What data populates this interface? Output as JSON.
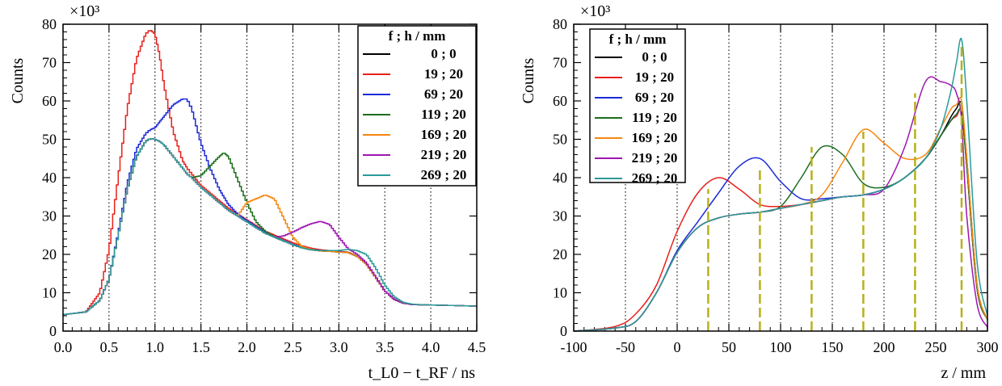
{
  "chart_data": [
    {
      "type": "line",
      "style": "histogram",
      "xlabel": "t_L0 − t_RF / ns",
      "ylabel": "Counts",
      "y_multiplier": "×10³",
      "xlim": [
        0,
        4.5
      ],
      "ylim": [
        0,
        80
      ],
      "xticks": [
        "0.0",
        "0.5",
        "1.0",
        "1.5",
        "2.0",
        "2.5",
        "3.0",
        "3.5",
        "4.0",
        "4.5"
      ],
      "yticks": [
        "0",
        "10",
        "20",
        "30",
        "40",
        "50",
        "60",
        "70",
        "80"
      ],
      "grid_x": [
        0.5,
        1.0,
        1.5,
        2.0,
        2.5,
        3.0,
        3.5,
        4.0
      ],
      "legend_title": "f ; h / mm",
      "legend_position": "top-right",
      "series": [
        {
          "name": "0 ; 0",
          "color": "#000000"
        },
        {
          "name": "19 ; 20",
          "color": "#e8201b"
        },
        {
          "name": "69 ; 20",
          "color": "#1c2ad8"
        },
        {
          "name": "119 ; 20",
          "color": "#1c6e1c"
        },
        {
          "name": "169 ; 20",
          "color": "#f7860f"
        },
        {
          "name": "219 ; 20",
          "color": "#9e16b0"
        },
        {
          "name": "269 ; 20",
          "color": "#2a9a9a"
        }
      ],
      "x": [
        0.0,
        0.25,
        0.4,
        0.5,
        0.6,
        0.7,
        0.8,
        0.9,
        0.95,
        1.0,
        1.05,
        1.1,
        1.2,
        1.3,
        1.35,
        1.4,
        1.5,
        1.6,
        1.7,
        1.75,
        1.8,
        1.9,
        2.0,
        2.1,
        2.2,
        2.3,
        2.4,
        2.5,
        2.6,
        2.7,
        2.8,
        2.9,
        3.0,
        3.1,
        3.2,
        3.3,
        3.4,
        3.5,
        3.6,
        3.7,
        3.8,
        4.0,
        4.2,
        4.5
      ],
      "values": [
        [
          4.3,
          5.0,
          8.0,
          13.5,
          25.0,
          37.0,
          45.5,
          49.5,
          50.2,
          50.0,
          49.5,
          48.5,
          45.5,
          42.5,
          41.0,
          40.0,
          37.5,
          35.5,
          33.5,
          32.5,
          31.5,
          30.0,
          28.5,
          27.0,
          25.5,
          24.5,
          23.5,
          22.5,
          21.7,
          21.2,
          20.9,
          20.8,
          20.6,
          20.5,
          19.5,
          17.5,
          14.0,
          10.5,
          8.3,
          7.3,
          6.9,
          6.8,
          6.7,
          6.5
        ],
        [
          4.3,
          5.0,
          10.0,
          21.0,
          40.0,
          58.0,
          71.0,
          77.5,
          78.5,
          77.5,
          72.0,
          64.0,
          52.0,
          44.5,
          42.5,
          41.0,
          38.0,
          36.0,
          34.0,
          33.0,
          32.0,
          30.5,
          29.0,
          27.5,
          26.0,
          25.0,
          24.0,
          23.0,
          22.2,
          21.6,
          21.2,
          21.0,
          20.8,
          20.6,
          19.5,
          17.5,
          14.0,
          10.5,
          8.3,
          7.3,
          6.9,
          6.8,
          6.7,
          6.5
        ],
        [
          4.3,
          5.0,
          8.0,
          13.5,
          25.5,
          38.5,
          47.5,
          51.5,
          52.5,
          53.0,
          54.5,
          56.0,
          59.0,
          60.5,
          60.5,
          58.0,
          49.0,
          42.5,
          37.0,
          35.0,
          33.0,
          30.5,
          28.8,
          27.2,
          25.8,
          24.6,
          23.6,
          22.6,
          21.8,
          21.3,
          21.0,
          20.9,
          20.7,
          20.5,
          19.5,
          17.5,
          14.0,
          10.5,
          8.3,
          7.3,
          6.9,
          6.8,
          6.7,
          6.5
        ],
        [
          4.3,
          5.0,
          8.0,
          13.5,
          25.0,
          37.0,
          45.5,
          49.5,
          50.2,
          50.0,
          49.5,
          48.5,
          45.5,
          42.5,
          41.0,
          40.0,
          40.5,
          43.0,
          45.5,
          46.5,
          45.5,
          39.5,
          33.5,
          28.5,
          26.0,
          24.5,
          23.5,
          22.5,
          21.7,
          21.2,
          20.9,
          20.8,
          20.6,
          20.5,
          19.5,
          17.5,
          14.0,
          10.5,
          8.3,
          7.3,
          6.9,
          6.8,
          6.7,
          6.5
        ],
        [
          4.3,
          5.0,
          8.0,
          13.5,
          25.0,
          37.0,
          45.5,
          49.5,
          50.2,
          50.0,
          49.5,
          48.5,
          45.5,
          42.5,
          41.0,
          40.0,
          37.5,
          35.5,
          33.5,
          32.5,
          31.5,
          30.0,
          33.5,
          34.5,
          35.5,
          34.5,
          29.5,
          24.5,
          22.0,
          21.3,
          20.9,
          20.8,
          20.6,
          20.5,
          19.5,
          17.5,
          14.0,
          10.5,
          8.3,
          7.3,
          6.9,
          6.8,
          6.7,
          6.5
        ],
        [
          4.3,
          5.0,
          8.0,
          13.5,
          25.0,
          37.0,
          45.5,
          49.5,
          50.2,
          50.0,
          49.5,
          48.5,
          45.5,
          42.5,
          41.0,
          40.0,
          37.5,
          35.5,
          33.5,
          32.5,
          31.5,
          30.0,
          28.5,
          27.0,
          25.5,
          24.5,
          24.8,
          25.8,
          27.0,
          28.0,
          28.6,
          27.8,
          24.5,
          21.5,
          20.0,
          17.8,
          14.2,
          10.5,
          8.3,
          7.3,
          6.9,
          6.8,
          6.7,
          6.5
        ],
        [
          4.3,
          5.0,
          8.0,
          13.5,
          25.0,
          37.0,
          45.5,
          49.5,
          50.2,
          50.0,
          49.5,
          48.5,
          45.5,
          42.5,
          41.0,
          40.0,
          37.5,
          35.5,
          33.5,
          32.5,
          31.5,
          30.0,
          28.5,
          27.0,
          25.5,
          24.5,
          23.5,
          22.5,
          21.7,
          21.2,
          21.0,
          21.0,
          21.0,
          21.3,
          21.0,
          20.0,
          16.5,
          12.0,
          9.0,
          7.5,
          7.0,
          6.8,
          6.7,
          6.5
        ]
      ]
    },
    {
      "type": "line",
      "xlabel": "z / mm",
      "ylabel": "Counts",
      "y_multiplier": "×10³",
      "xlim": [
        -100,
        300
      ],
      "ylim": [
        0,
        80
      ],
      "xticks": [
        "-100",
        "-50",
        "0",
        "50",
        "100",
        "150",
        "200",
        "250",
        "300"
      ],
      "yticks": [
        "0",
        "10",
        "20",
        "30",
        "40",
        "50",
        "60",
        "70",
        "80"
      ],
      "grid_x": [
        -50,
        0,
        50,
        100,
        150,
        200,
        250
      ],
      "legend_title": "f ; h / mm",
      "legend_position": "top-left",
      "markers": [
        {
          "x": 30,
          "y": 37
        },
        {
          "x": 80,
          "y": 43
        },
        {
          "x": 130,
          "y": 48
        },
        {
          "x": 180,
          "y": 52
        },
        {
          "x": 230,
          "y": 62
        },
        {
          "x": 275,
          "y": 75
        }
      ],
      "marker_color": "#b8b01a",
      "series": [
        {
          "name": "0 ; 0",
          "color": "#000000"
        },
        {
          "name": "19 ; 20",
          "color": "#e8201b"
        },
        {
          "name": "69 ; 20",
          "color": "#1c2ad8"
        },
        {
          "name": "119 ; 20",
          "color": "#1c6e1c"
        },
        {
          "name": "169 ; 20",
          "color": "#f7860f"
        },
        {
          "name": "219 ; 20",
          "color": "#9e16b0"
        },
        {
          "name": "269 ; 20",
          "color": "#2a9a9a"
        }
      ],
      "x": [
        -100,
        -60,
        -40,
        -20,
        0,
        20,
        40,
        60,
        80,
        100,
        120,
        140,
        160,
        180,
        200,
        220,
        240,
        255,
        265,
        270,
        275,
        280,
        290,
        300
      ],
      "values": [
        [
          0,
          0.8,
          2.5,
          10.0,
          20.5,
          27.0,
          29.5,
          30.5,
          31.0,
          32.0,
          33.0,
          34.0,
          35.0,
          35.5,
          37.0,
          40.0,
          45.0,
          51.0,
          56.0,
          58.0,
          59.0,
          45.0,
          12.0,
          3.0
        ],
        [
          0,
          1.2,
          4.5,
          12.0,
          26.0,
          36.0,
          40.0,
          37.0,
          33.0,
          32.5,
          33.0,
          34.0,
          35.0,
          35.5,
          37.0,
          40.0,
          45.0,
          51.0,
          55.0,
          56.0,
          57.0,
          43.0,
          11.0,
          3.0
        ],
        [
          0,
          0.8,
          2.5,
          10.0,
          21.0,
          28.5,
          36.0,
          43.0,
          45.0,
          39.0,
          34.5,
          34.5,
          35.0,
          35.5,
          37.0,
          40.0,
          45.0,
          51.0,
          55.0,
          56.5,
          57.0,
          43.0,
          11.0,
          3.0
        ],
        [
          0,
          0.8,
          2.5,
          10.0,
          20.5,
          27.0,
          29.5,
          30.5,
          31.0,
          32.5,
          40.0,
          48.0,
          46.0,
          38.5,
          37.5,
          40.0,
          45.0,
          51.0,
          55.0,
          56.5,
          57.0,
          43.0,
          11.0,
          3.0
        ],
        [
          0,
          0.8,
          2.5,
          10.0,
          20.5,
          27.0,
          29.5,
          30.5,
          31.0,
          32.0,
          33.0,
          35.5,
          44.0,
          52.5,
          49.0,
          45.0,
          46.0,
          53.0,
          58.0,
          59.0,
          60.0,
          45.0,
          12.0,
          3.0
        ],
        [
          0,
          0.8,
          2.5,
          10.0,
          20.5,
          27.0,
          29.5,
          30.5,
          31.0,
          32.0,
          33.0,
          34.0,
          35.0,
          35.5,
          37.0,
          48.0,
          65.0,
          65.0,
          64.0,
          62.0,
          55.0,
          30.0,
          7.0,
          1.0
        ],
        [
          0,
          0.8,
          2.5,
          10.0,
          20.5,
          27.0,
          29.5,
          30.5,
          31.0,
          32.0,
          33.0,
          34.0,
          35.0,
          35.5,
          37.0,
          40.0,
          45.0,
          53.0,
          63.0,
          70.0,
          76.0,
          60.0,
          18.0,
          4.0
        ]
      ]
    }
  ]
}
